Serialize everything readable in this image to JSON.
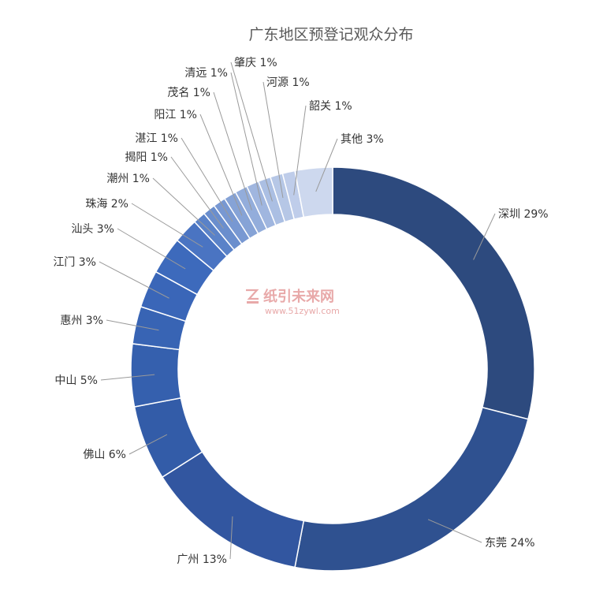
{
  "chart_data": {
    "type": "pie",
    "variant": "donut",
    "title": "广东地区预登记观众分布",
    "unit": "%",
    "slices": [
      {
        "label": "深圳",
        "value": 29,
        "color": "#2d4a7e"
      },
      {
        "label": "东莞",
        "value": 24,
        "color": "#2f5190"
      },
      {
        "label": "广州",
        "value": 13,
        "color": "#3256a0"
      },
      {
        "label": "佛山",
        "value": 6,
        "color": "#335ca8"
      },
      {
        "label": "中山",
        "value": 5,
        "color": "#3560ae"
      },
      {
        "label": "惠州",
        "value": 3,
        "color": "#3864b4"
      },
      {
        "label": "江门",
        "value": 3,
        "color": "#3a66b8"
      },
      {
        "label": "汕头",
        "value": 3,
        "color": "#3d6abc"
      },
      {
        "label": "珠海",
        "value": 2,
        "color": "#4a74c2"
      },
      {
        "label": "潮州",
        "value": 1,
        "color": "#5a82c8"
      },
      {
        "label": "揭阳",
        "value": 1,
        "color": "#6a8ecd"
      },
      {
        "label": "湛江",
        "value": 1,
        "color": "#7898d2"
      },
      {
        "label": "阳江",
        "value": 1,
        "color": "#86a3d6"
      },
      {
        "label": "茂名",
        "value": 1,
        "color": "#93addb"
      },
      {
        "label": "清远",
        "value": 1,
        "color": "#a0b6df"
      },
      {
        "label": "肇庆",
        "value": 1,
        "color": "#abbfe3"
      },
      {
        "label": "河源",
        "value": 1,
        "color": "#b6c7e6"
      },
      {
        "label": "韶关",
        "value": 1,
        "color": "#bfcdea"
      },
      {
        "label": "其他",
        "value": 3,
        "color": "#cdd8ee"
      }
    ],
    "legend": "none"
  },
  "watermark": {
    "text": "纸引未来网",
    "url": "www.51zywl.com"
  }
}
